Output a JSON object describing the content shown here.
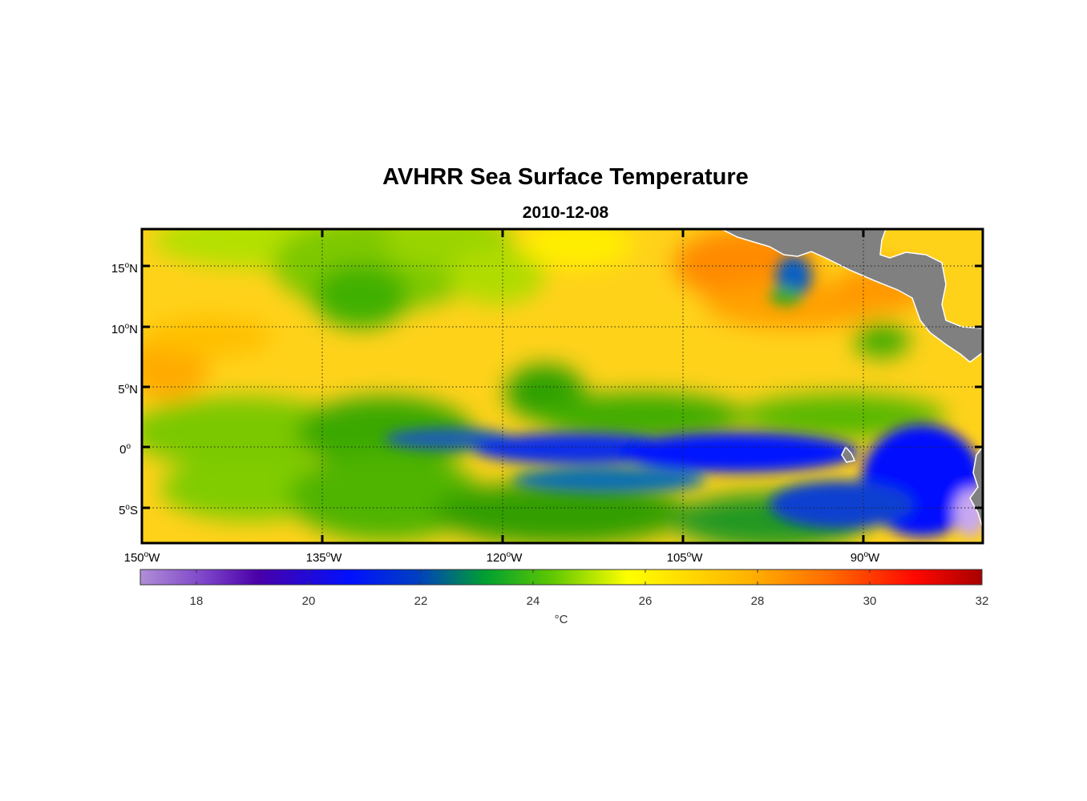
{
  "title": "AVHRR Sea Surface Temperature",
  "subtitle": "2010-12-08",
  "map": {
    "lon_range": [
      -150,
      -80
    ],
    "lat_range": [
      -8,
      18
    ],
    "grid": "dotted",
    "land_color": "#808080",
    "lon_ticks": [
      {
        "deg": "150",
        "hem": "W"
      },
      {
        "deg": "135",
        "hem": "W"
      },
      {
        "deg": "120",
        "hem": "W"
      },
      {
        "deg": "105",
        "hem": "W"
      },
      {
        "deg": "90",
        "hem": "W"
      }
    ],
    "lat_ticks": [
      {
        "deg": "15",
        "hem": "N"
      },
      {
        "deg": "10",
        "hem": "N"
      },
      {
        "deg": "5",
        "hem": "N"
      },
      {
        "deg": "0",
        "hem": ""
      },
      {
        "deg": "5",
        "hem": "S"
      }
    ],
    "degree_symbol": "o"
  },
  "colorbar": {
    "min": 17,
    "max": 32,
    "ticks": [
      "18",
      "20",
      "22",
      "24",
      "26",
      "28",
      "30",
      "32"
    ],
    "unit": "°C",
    "colors": [
      "#b08ed6",
      "#5a00b0",
      "#0010ff",
      "#0060b0",
      "#00a020",
      "#90d800",
      "#ffff00",
      "#ffc000",
      "#ff7a00",
      "#ff1000",
      "#a80000"
    ]
  }
}
